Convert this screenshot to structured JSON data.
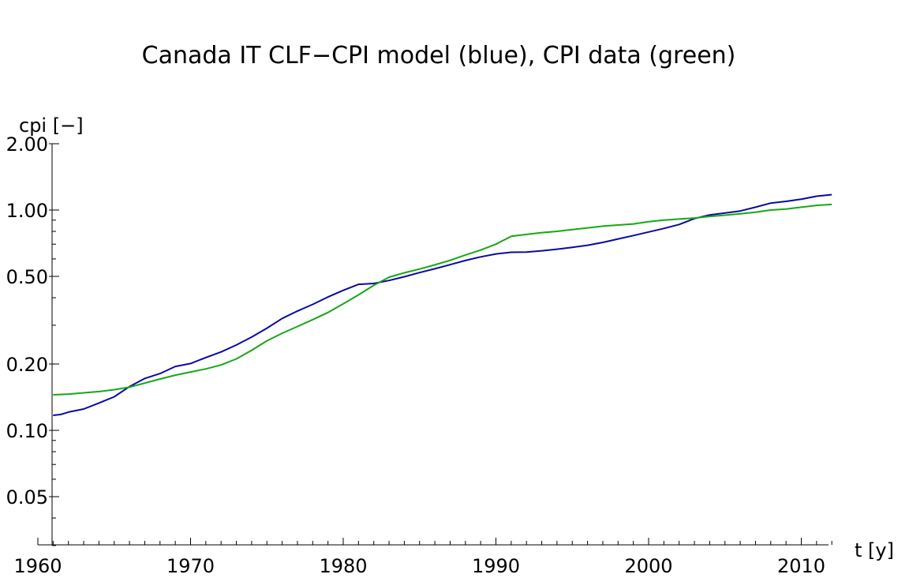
{
  "chart_data": {
    "type": "line",
    "title": "Canada IT CLF−CPI model (blue), CPI data (green)",
    "xlabel": "t [y]",
    "ylabel": "cpi [−]",
    "xlim": [
      1960,
      2013
    ],
    "ylim": [
      0.03,
      2.0
    ],
    "y_scale": "log",
    "grid": false,
    "legend": "none",
    "x_ticks": [
      1960,
      1970,
      1980,
      1990,
      2000,
      2010
    ],
    "x_tick_labels": [
      "1960",
      "1970",
      "1980",
      "1990",
      "2000",
      "2010"
    ],
    "y_ticks": [
      2.0,
      1.0,
      0.5,
      0.2,
      0.1,
      0.05
    ],
    "y_tick_labels": [
      "2.00",
      "1.00",
      "0.50",
      "0.20",
      "0.10",
      "0.05"
    ],
    "series": [
      {
        "color": "#0a0aa0",
        "x": [
          1961,
          1961.5,
          1962,
          1963,
          1964,
          1965,
          1966,
          1967,
          1968,
          1969,
          1970,
          1971,
          1972,
          1973,
          1974,
          1975,
          1976,
          1977,
          1978,
          1979,
          1980,
          1981,
          1982,
          1983,
          1984,
          1985,
          1986,
          1987,
          1988,
          1989,
          1990,
          1991,
          1992,
          1993,
          1994,
          1995,
          1996,
          1997,
          1998,
          1999,
          2000,
          2001,
          2002,
          2003,
          2004,
          2005,
          2006,
          2007,
          2008,
          2009,
          2010,
          2011,
          2012
        ],
        "y": [
          0.117,
          0.118,
          0.121,
          0.125,
          0.133,
          0.142,
          0.158,
          0.172,
          0.181,
          0.195,
          0.201,
          0.214,
          0.227,
          0.244,
          0.265,
          0.291,
          0.322,
          0.348,
          0.373,
          0.403,
          0.432,
          0.46,
          0.464,
          0.479,
          0.498,
          0.52,
          0.541,
          0.565,
          0.59,
          0.613,
          0.632,
          0.643,
          0.644,
          0.653,
          0.664,
          0.677,
          0.692,
          0.713,
          0.739,
          0.766,
          0.795,
          0.825,
          0.86,
          0.915,
          0.95,
          0.97,
          0.99,
          1.03,
          1.075,
          1.095,
          1.12,
          1.155,
          1.175
        ]
      },
      {
        "color": "#16a816",
        "x": [
          1961,
          1962,
          1963,
          1964,
          1965,
          1966,
          1967,
          1968,
          1969,
          1970,
          1971,
          1972,
          1973,
          1974,
          1975,
          1976,
          1977,
          1978,
          1979,
          1980,
          1981,
          1982,
          1983,
          1984,
          1985,
          1986,
          1987,
          1988,
          1989,
          1990,
          1991,
          1992,
          1993,
          1994,
          1995,
          1996,
          1997,
          1998,
          1999,
          2000,
          2001,
          2002,
          2003,
          2004,
          2005,
          2006,
          2007,
          2008,
          2009,
          2010,
          2011,
          2012
        ],
        "y": [
          0.145,
          0.146,
          0.148,
          0.15,
          0.153,
          0.157,
          0.164,
          0.171,
          0.178,
          0.184,
          0.19,
          0.198,
          0.211,
          0.231,
          0.255,
          0.276,
          0.296,
          0.318,
          0.343,
          0.375,
          0.412,
          0.455,
          0.496,
          0.519,
          0.54,
          0.564,
          0.591,
          0.625,
          0.658,
          0.7,
          0.76,
          0.775,
          0.79,
          0.8,
          0.815,
          0.83,
          0.845,
          0.855,
          0.865,
          0.885,
          0.9,
          0.91,
          0.92,
          0.935,
          0.948,
          0.962,
          0.978,
          1.0,
          1.01,
          1.03,
          1.05,
          1.06
        ]
      }
    ]
  }
}
